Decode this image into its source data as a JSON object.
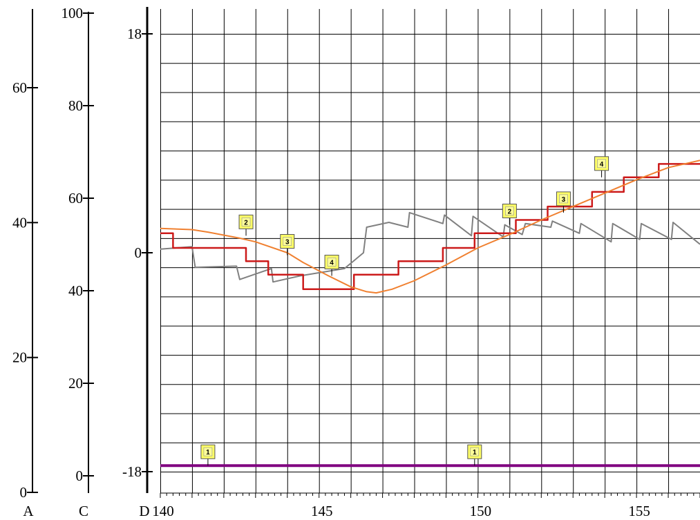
{
  "chart_data": {
    "type": "line",
    "title": "",
    "grid": true,
    "legend": "none",
    "x_axis": {
      "name": "",
      "range": [
        140,
        157
      ],
      "tick_labels": [
        "140",
        "145",
        "150",
        "155"
      ],
      "minor_step": 0.2
    },
    "y_axes": [
      {
        "id": "A",
        "name": "A",
        "range": [
          0,
          66
        ],
        "tick_labels": [
          "0",
          "20",
          "40",
          "60"
        ],
        "tick_values": [
          0,
          20,
          40,
          60
        ]
      },
      {
        "id": "C",
        "name": "C",
        "range": [
          -4,
          100
        ],
        "tick_labels": [
          "0",
          "20",
          "40",
          "60",
          "80",
          "100"
        ],
        "tick_values": [
          0,
          20,
          40,
          60,
          80,
          100
        ]
      },
      {
        "id": "D",
        "name": "D",
        "range": [
          -18,
          18
        ],
        "tick_labels": [
          "-18",
          "0",
          "18"
        ],
        "tick_values": [
          -18,
          0,
          18
        ]
      }
    ],
    "y_gridlines": {
      "axis": "D",
      "min": -18,
      "max": 18,
      "step": 2.4
    },
    "series": [
      {
        "id": "gray",
        "color": "#808080",
        "axis": "D",
        "points": [
          [
            140,
            0.3
          ],
          [
            141,
            0.5
          ],
          [
            141.1,
            -1.2
          ],
          [
            142.4,
            -1.1
          ],
          [
            142.5,
            -2.2
          ],
          [
            143.5,
            -1.3
          ],
          [
            143.55,
            -2.4
          ],
          [
            144.4,
            -1.9
          ],
          [
            145.8,
            -1.3
          ],
          [
            146.4,
            0
          ],
          [
            146.5,
            2.1
          ],
          [
            147.2,
            2.5
          ],
          [
            147.8,
            2.1
          ],
          [
            147.85,
            3.3
          ],
          [
            148.9,
            2.4
          ],
          [
            148.95,
            3.1
          ],
          [
            149.8,
            1.4
          ],
          [
            149.85,
            3.0
          ],
          [
            150.8,
            1.3
          ],
          [
            150.85,
            2.3
          ],
          [
            151.4,
            1.5
          ],
          [
            151.5,
            2.4
          ],
          [
            152.3,
            2.1
          ],
          [
            152.35,
            2.6
          ],
          [
            153.2,
            1.6
          ],
          [
            153.25,
            2.4
          ],
          [
            154.2,
            0.9
          ],
          [
            154.25,
            2.4
          ],
          [
            155.1,
            1.1
          ],
          [
            155.15,
            2.4
          ],
          [
            156.1,
            1.1
          ],
          [
            156.15,
            2.5
          ],
          [
            157,
            0.7
          ]
        ]
      },
      {
        "id": "red",
        "color": "#cc1a1a",
        "axis": "D",
        "points": [
          [
            140,
            1.6
          ],
          [
            140.4,
            1.6
          ],
          [
            140.4,
            0.4
          ],
          [
            142.7,
            0.4
          ],
          [
            142.7,
            -0.7
          ],
          [
            143.4,
            -0.7
          ],
          [
            143.4,
            -1.8
          ],
          [
            144.5,
            -1.8
          ],
          [
            144.5,
            -3.0
          ],
          [
            146.1,
            -3.0
          ],
          [
            146.1,
            -1.8
          ],
          [
            147.5,
            -1.8
          ],
          [
            147.5,
            -0.7
          ],
          [
            148.9,
            -0.7
          ],
          [
            148.9,
            0.4
          ],
          [
            149.9,
            0.4
          ],
          [
            149.9,
            1.6
          ],
          [
            151.2,
            1.6
          ],
          [
            151.2,
            2.7
          ],
          [
            152.2,
            2.7
          ],
          [
            152.2,
            3.8
          ],
          [
            153.6,
            3.8
          ],
          [
            153.6,
            5.0
          ],
          [
            154.6,
            5.0
          ],
          [
            154.6,
            6.2
          ],
          [
            155.7,
            6.2
          ],
          [
            155.7,
            7.3
          ],
          [
            157,
            7.3
          ]
        ]
      },
      {
        "id": "orange",
        "color": "#f08030",
        "axis": "D",
        "points": [
          [
            140,
            2.0
          ],
          [
            141,
            1.9
          ],
          [
            141.5,
            1.7
          ],
          [
            142.5,
            1.2
          ],
          [
            143,
            0.9
          ],
          [
            144,
            0
          ],
          [
            144.5,
            -0.8
          ],
          [
            145.3,
            -1.9
          ],
          [
            146,
            -2.8
          ],
          [
            146.5,
            -3.2
          ],
          [
            146.8,
            -3.3
          ],
          [
            147.3,
            -3.0
          ],
          [
            148,
            -2.3
          ],
          [
            149,
            -1.0
          ],
          [
            150,
            0.4
          ],
          [
            151,
            1.5
          ],
          [
            152,
            2.7
          ],
          [
            153,
            3.8
          ],
          [
            154,
            4.9
          ],
          [
            155,
            6.0
          ],
          [
            156,
            7.0
          ],
          [
            157,
            7.6
          ]
        ]
      },
      {
        "id": "purple",
        "color": "#800080",
        "axis": "D",
        "points": [
          [
            140,
            -17.5
          ],
          [
            157,
            -17.5
          ]
        ]
      }
    ],
    "markers": [
      {
        "label": "1",
        "x": 141.5,
        "y": -17.5
      },
      {
        "label": "1",
        "x": 149.9,
        "y": -17.5
      },
      {
        "label": "2",
        "x": 142.7,
        "y": 1.4
      },
      {
        "label": "3",
        "x": 144.0,
        "y": -0.2
      },
      {
        "label": "4",
        "x": 145.4,
        "y": -1.9
      },
      {
        "label": "2",
        "x": 151.0,
        "y": 2.3
      },
      {
        "label": "3",
        "x": 152.7,
        "y": 3.3
      },
      {
        "label": "4",
        "x": 153.9,
        "y": 6.2
      }
    ]
  }
}
